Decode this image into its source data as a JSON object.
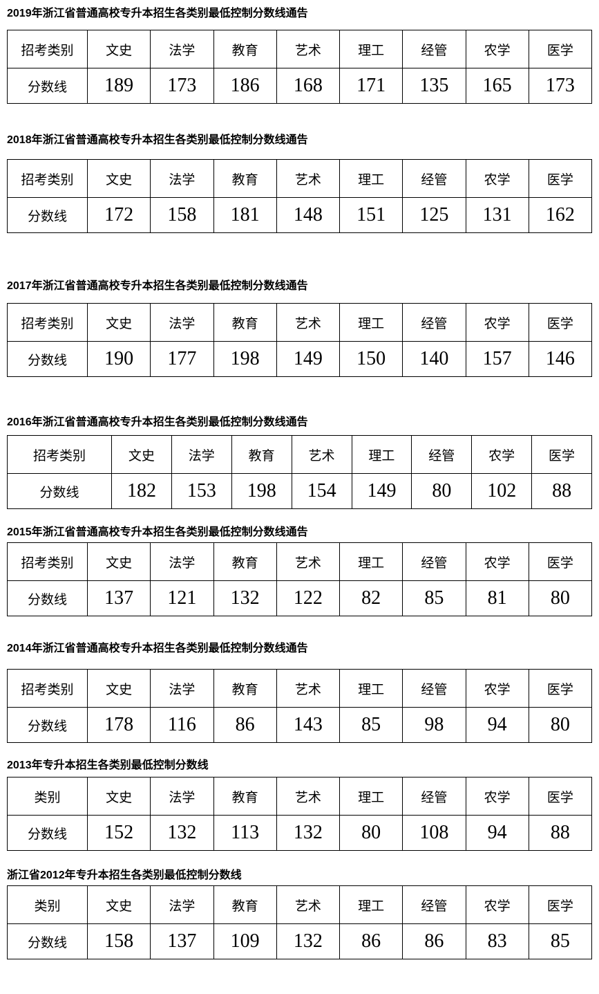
{
  "sections": [
    {
      "title": "2019年浙江省普通高校专升本招生各类别最低控制分数线通告",
      "header": [
        "招考类别",
        "文史",
        "法学",
        "教育",
        "艺术",
        "理工",
        "经管",
        "农学",
        "医学"
      ],
      "row_label": "分数线",
      "scores": [
        "189",
        "173",
        "186",
        "168",
        "171",
        "135",
        "165",
        "173"
      ]
    },
    {
      "title": "2018年浙江省普通高校专升本招生各类别最低控制分数线通告",
      "header": [
        "招考类别",
        "文史",
        "法学",
        "教育",
        "艺术",
        "理工",
        "经管",
        "农学",
        "医学"
      ],
      "row_label": "分数线",
      "scores": [
        "172",
        "158",
        "181",
        "148",
        "151",
        "125",
        "131",
        "162"
      ]
    },
    {
      "title": "2017年浙江省普通高校专升本招生各类别最低控制分数线通告",
      "header": [
        "招考类别",
        "文史",
        "法学",
        "教育",
        "艺术",
        "理工",
        "经管",
        "农学",
        "医学"
      ],
      "row_label": "分数线",
      "scores": [
        "190",
        "177",
        "198",
        "149",
        "150",
        "140",
        "157",
        "146"
      ]
    },
    {
      "title": "2016年浙江省普通高校专升本招生各类别最低控制分数线通告",
      "header": [
        "招考类别",
        "文史",
        "法学",
        "教育",
        "艺术",
        "理工",
        "经管",
        "农学",
        "医学"
      ],
      "row_label": "分数线",
      "scores": [
        "182",
        "153",
        "198",
        "154",
        "149",
        "80",
        "102",
        "88"
      ]
    },
    {
      "title": "2015年浙江省普通高校专升本招生各类别最低控制分数线通告",
      "header": [
        "招考类别",
        "文史",
        "法学",
        "教育",
        "艺术",
        "理工",
        "经管",
        "农学",
        "医学"
      ],
      "row_label": "分数线",
      "scores": [
        "137",
        "121",
        "132",
        "122",
        "82",
        "85",
        "81",
        "80"
      ]
    },
    {
      "title": "2014年浙江省普通高校专升本招生各类别最低控制分数线通告",
      "header": [
        "招考类别",
        "文史",
        "法学",
        "教育",
        "艺术",
        "理工",
        "经管",
        "农学",
        "医学"
      ],
      "row_label": "分数线",
      "scores": [
        "178",
        "116",
        "86",
        "143",
        "85",
        "98",
        "94",
        "80"
      ]
    },
    {
      "title": "2013年专升本招生各类别最低控制分数线",
      "header": [
        "类别",
        "文史",
        "法学",
        "教育",
        "艺术",
        "理工",
        "经管",
        "农学",
        "医学"
      ],
      "row_label": "分数线",
      "scores": [
        "152",
        "132",
        "113",
        "132",
        "80",
        "108",
        "94",
        "88"
      ]
    },
    {
      "title": "浙江省2012年专升本招生各类别最低控制分数线",
      "header": [
        "类别",
        "文史",
        "法学",
        "教育",
        "艺术",
        "理工",
        "经管",
        "农学",
        "医学"
      ],
      "row_label": "分数线",
      "scores": [
        "158",
        "137",
        "109",
        "132",
        "86",
        "86",
        "83",
        "85"
      ]
    }
  ],
  "colors": {
    "text": "#000000",
    "table_border": "#000000",
    "background": "#ffffff"
  }
}
